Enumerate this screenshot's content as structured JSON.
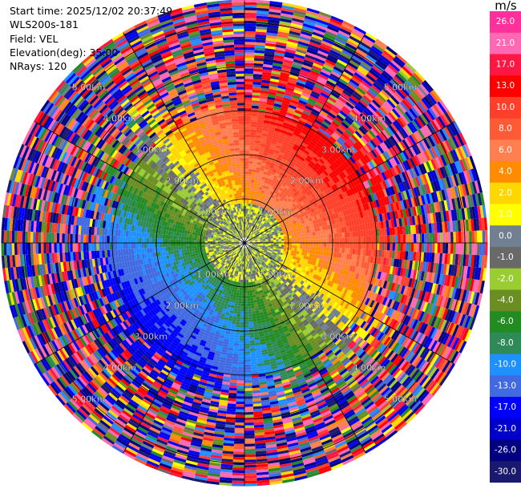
{
  "info": {
    "start_time": "Start time: 2025/12/02 20:37:49",
    "instrument": "WLS200s-181",
    "field": "Field: VEL",
    "elevation": "Elevation(deg): 35.00",
    "nrays": "NRays: 120"
  },
  "colorbar": {
    "unit": "m/s",
    "ticks": [
      "26.0",
      "21.0",
      "17.0",
      "13.0",
      "10.0",
      "8.0",
      "6.0",
      "4.0",
      "2.0",
      "1.0",
      "0.0",
      "-1.0",
      "-2.0",
      "-4.0",
      "-6.0",
      "-8.0",
      "-10.0",
      "-13.0",
      "-17.0",
      "-21.0",
      "-26.0",
      "-30.0"
    ],
    "colors": [
      "#ff2f9c",
      "#ff69b4",
      "#ff1744",
      "#ff0000",
      "#ff3f2a",
      "#ff5a36",
      "#ff7f50",
      "#ff8c00",
      "#ffd700",
      "#ffff00",
      "#708090",
      "#696969",
      "#9acd32",
      "#6b8e23",
      "#228b22",
      "#2e8b57",
      "#1e90ff",
      "#4169e1",
      "#0000ff",
      "#0000cd",
      "#000080",
      "#191970"
    ]
  },
  "chart_data": {
    "type": "heatmap",
    "subtype": "polar-ppi",
    "field": "VEL",
    "units": "m/s",
    "n_rays": 120,
    "elevation_deg": 35.0,
    "range_rings_km": [
      1.0,
      2.0,
      3.0,
      4.0,
      5.0
    ],
    "range_ring_labels": [
      "1.00km",
      "2.00km",
      "3.00km",
      "4.00km",
      "5.00km"
    ],
    "max_range_km": 5.5,
    "colormap_levels": [
      26.0,
      21.0,
      17.0,
      13.0,
      10.0,
      8.0,
      6.0,
      4.0,
      2.0,
      1.0,
      0.0,
      -1.0,
      -2.0,
      -4.0,
      -6.0,
      -8.0,
      -10.0,
      -13.0,
      -17.0,
      -21.0,
      -26.0,
      -30.0
    ]
  }
}
